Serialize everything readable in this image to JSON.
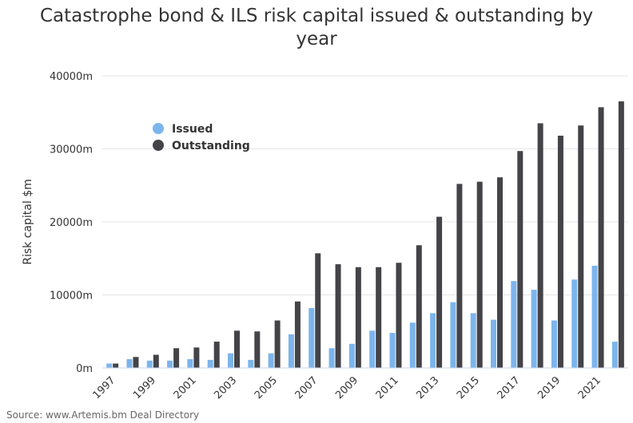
{
  "chart_data": {
    "type": "bar",
    "title": "Catastrophe bond & ILS risk capital issued & outstanding by year",
    "ylabel": "Risk capital $m",
    "xlabel": "",
    "ylim": [
      0,
      40000
    ],
    "yticks": [
      0,
      10000,
      20000,
      30000,
      40000
    ],
    "ytick_labels": [
      "0m",
      "10000m",
      "20000m",
      "30000m",
      "40000m"
    ],
    "categories": [
      "1997",
      "1998",
      "1999",
      "2000",
      "2001",
      "2002",
      "2003",
      "2004",
      "2005",
      "2006",
      "2007",
      "2008",
      "2009",
      "2010",
      "2011",
      "2012",
      "2013",
      "2014",
      "2015",
      "2016",
      "2017",
      "2018",
      "2019",
      "2020",
      "2021",
      "2022"
    ],
    "xtick_labels": [
      "1997",
      "1999",
      "2001",
      "2003",
      "2005",
      "2007",
      "2009",
      "2011",
      "2013",
      "2015",
      "2017",
      "2019",
      "2021"
    ],
    "series": [
      {
        "name": "Issued",
        "color": "#7cb5ec",
        "values": [
          600,
          1200,
          1000,
          1000,
          1200,
          1100,
          2000,
          1100,
          2000,
          4600,
          8200,
          2700,
          3300,
          5100,
          4800,
          6200,
          7500,
          9000,
          7500,
          6600,
          11900,
          10700,
          6500,
          12100,
          14000,
          3600
        ]
      },
      {
        "name": "Outstanding",
        "color": "#434348",
        "values": [
          600,
          1500,
          1800,
          2700,
          2800,
          3600,
          5100,
          5000,
          6500,
          9100,
          15700,
          14200,
          13800,
          13800,
          14400,
          16800,
          20700,
          25200,
          25500,
          26100,
          29700,
          33500,
          31800,
          33200,
          35700,
          36500
        ]
      }
    ],
    "legend_position": "top-left",
    "grid": true,
    "source": "Source: www.Artemis.bm Deal Directory"
  }
}
